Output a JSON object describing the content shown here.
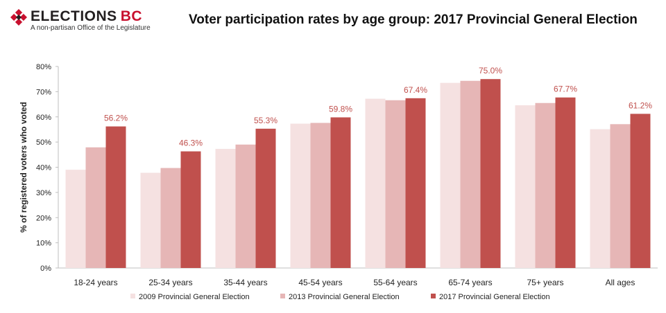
{
  "header": {
    "logo_name": "ELECTIONS",
    "logo_suffix": "BC",
    "logo_tagline": "A non-partisan Office of the Legislature"
  },
  "colors": {
    "series": [
      "#f5e1e1",
      "#e6b6b6",
      "#c0504d"
    ],
    "data_label": "#c0504d",
    "axis": "#bfbfbf",
    "brand_red": "#c8102e"
  },
  "chart_data": {
    "type": "bar",
    "title": "Voter participation rates by age group: 2017 Provincial General Election",
    "xlabel": "",
    "ylabel": "% of registered voters who voted",
    "ylim": [
      0,
      80
    ],
    "yticks": [
      "0%",
      "10%",
      "20%",
      "30%",
      "40%",
      "50%",
      "60%",
      "70%",
      "80%"
    ],
    "categories": [
      "18-24 years",
      "25-34 years",
      "35-44 years",
      "45-54 years",
      "55-64 years",
      "65-74 years",
      "75+ years",
      "All ages"
    ],
    "series": [
      {
        "name": "2009 Provincial General Election",
        "values": [
          39.0,
          37.8,
          47.3,
          57.3,
          67.2,
          73.5,
          64.6,
          55.1
        ]
      },
      {
        "name": "2013 Provincial General Election",
        "values": [
          47.9,
          39.7,
          49.0,
          57.6,
          66.6,
          74.3,
          65.5,
          57.1
        ]
      },
      {
        "name": "2017 Provincial General Election",
        "values": [
          56.2,
          46.3,
          55.3,
          59.8,
          67.4,
          75.0,
          67.7,
          61.2
        ]
      }
    ],
    "data_labels": [
      "56.2%",
      "46.3%",
      "55.3%",
      "59.8%",
      "67.4%",
      "75.0%",
      "67.7%",
      "61.2%"
    ],
    "grid": false,
    "legend_position": "bottom"
  }
}
